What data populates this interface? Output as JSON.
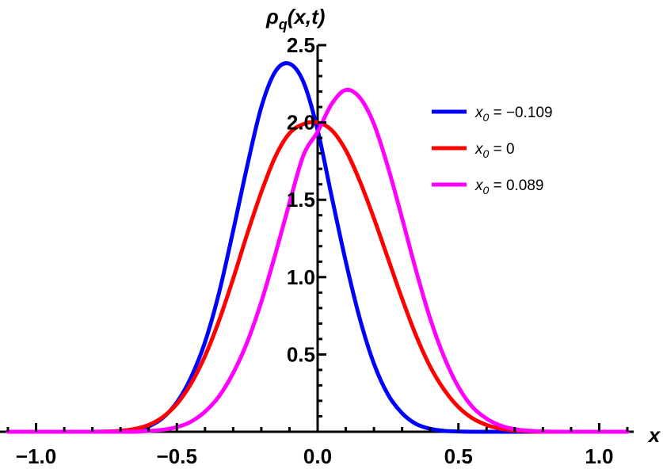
{
  "chart_data": {
    "type": "line",
    "title": "",
    "xlabel": "x",
    "ylabel": "ρ_q(x,t)",
    "ylabel_main": "ρ",
    "ylabel_sub": "q",
    "ylabel_args": "(x,t)",
    "xlim": [
      -1.1,
      1.1
    ],
    "ylim": [
      0,
      2.5
    ],
    "xticks": [
      -1.0,
      -0.5,
      0.0,
      0.5,
      1.0
    ],
    "xtick_labels": [
      "−1.0",
      "−0.5",
      "0.0",
      "0.5",
      "1.0"
    ],
    "yticks": [
      0.5,
      1.0,
      1.5,
      2.0,
      2.5
    ],
    "ytick_labels": [
      "0.5",
      "1.0",
      "1.5",
      "2.0",
      "2.5"
    ],
    "grid": false,
    "legend_position": "top-right",
    "x": [
      -1.1,
      -1.0,
      -0.9,
      -0.8,
      -0.75,
      -0.7,
      -0.65,
      -0.6,
      -0.55,
      -0.5,
      -0.45,
      -0.4,
      -0.35,
      -0.3,
      -0.25,
      -0.2,
      -0.15,
      -0.1,
      -0.05,
      0.0,
      0.05,
      0.1,
      0.15,
      0.2,
      0.25,
      0.3,
      0.35,
      0.4,
      0.45,
      0.5,
      0.55,
      0.6,
      0.65,
      0.7,
      0.75,
      0.8,
      0.9,
      1.0,
      1.1
    ],
    "series": [
      {
        "name": "x0 = −0.109",
        "legend_var": "x",
        "legend_sub": "0",
        "legend_value": " = −0.109",
        "color": "#0000ff",
        "values": [
          0.0,
          0.0,
          0.0,
          0.0,
          0.0,
          0.003,
          0.011,
          0.035,
          0.09,
          0.19,
          0.35,
          0.58,
          0.9,
          1.3,
          1.72,
          2.1,
          2.33,
          2.38,
          2.26,
          1.95,
          1.52,
          1.1,
          0.73,
          0.44,
          0.24,
          0.12,
          0.05,
          0.019,
          0.006,
          0.002,
          0.0,
          0.0,
          0.0,
          0.0,
          0.0,
          0.0,
          0.0,
          0.0,
          0.0
        ]
      },
      {
        "name": "x0 = 0",
        "legend_var": "x",
        "legend_sub": "0",
        "legend_value": " = 0",
        "color": "#ff0000",
        "values": [
          0.0,
          0.0,
          0.0,
          0.0,
          0.002,
          0.006,
          0.018,
          0.044,
          0.095,
          0.18,
          0.31,
          0.49,
          0.72,
          0.99,
          1.28,
          1.55,
          1.78,
          1.93,
          1.99,
          2.0,
          1.95,
          1.82,
          1.62,
          1.38,
          1.12,
          0.86,
          0.62,
          0.42,
          0.27,
          0.16,
          0.087,
          0.044,
          0.02,
          0.008,
          0.003,
          0.0,
          0.0,
          0.0,
          0.0
        ]
      },
      {
        "name": "x0 = 0.089",
        "legend_var": "x",
        "legend_sub": "0",
        "legend_value": " = 0.089",
        "color": "#ff00ff",
        "values": [
          0.0,
          0.0,
          0.0,
          0.0,
          0.0,
          0.0,
          0.0,
          0.005,
          0.013,
          0.03,
          0.065,
          0.13,
          0.23,
          0.38,
          0.58,
          0.84,
          1.15,
          1.48,
          1.79,
          1.94,
          2.12,
          2.21,
          2.16,
          1.99,
          1.71,
          1.38,
          1.04,
          0.73,
          0.48,
          0.29,
          0.16,
          0.085,
          0.04,
          0.017,
          0.007,
          0.002,
          0.0,
          0.0,
          0.0
        ]
      }
    ]
  }
}
